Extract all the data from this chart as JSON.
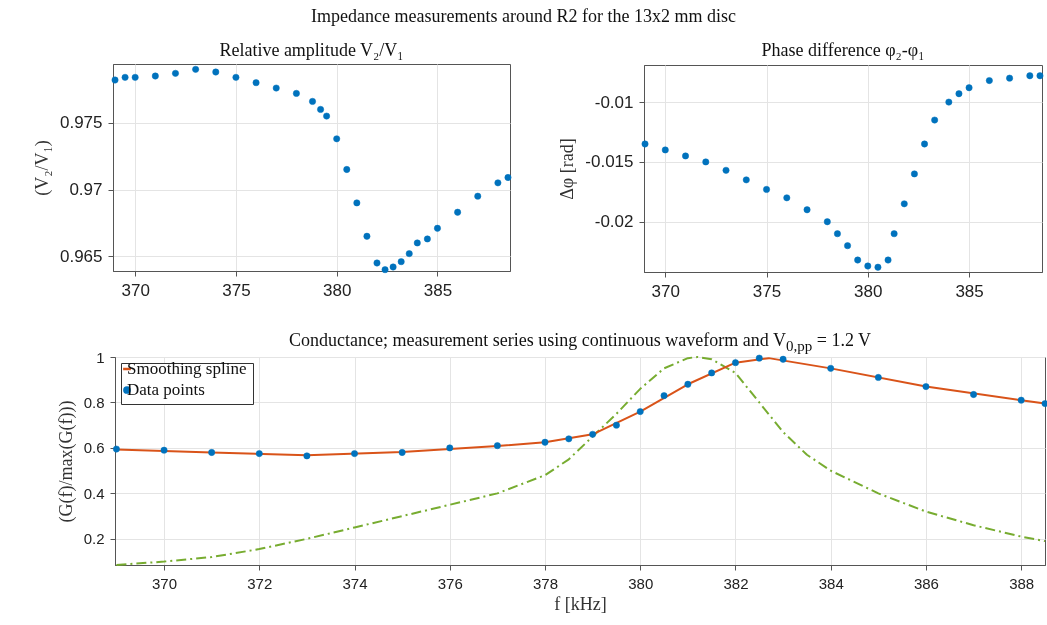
{
  "chart_data": [
    {
      "type": "scatter",
      "title": "Relative amplitude V₂/V₁",
      "ylabel": "(V₂/V₁)",
      "annotations": [
        "Impedance measurements around R2 for the 13x2 mm disc"
      ],
      "marker": "circle",
      "grid": true,
      "xlim": [
        368.9,
        388.6
      ],
      "xticks": [
        370,
        375,
        380,
        385
      ],
      "ylim": [
        0.9639,
        0.9794
      ],
      "yticks": [
        0.965,
        0.97,
        0.975
      ],
      "x": [
        369,
        369.5,
        370,
        371,
        372,
        373,
        374,
        375,
        376,
        377,
        378,
        378.8,
        379.2,
        379.5,
        380,
        380.5,
        381,
        381.5,
        382,
        382.4,
        382.8,
        383.2,
        383.6,
        384,
        384.5,
        385,
        386,
        387,
        388,
        388.5
      ],
      "series": [
        {
          "color": "#0072bd",
          "values": [
            0.9782,
            0.9784,
            0.9784,
            0.9785,
            0.9787,
            0.979,
            0.9788,
            0.9784,
            0.978,
            0.9776,
            0.9772,
            0.9766,
            0.976,
            0.9755,
            0.9738,
            0.9715,
            0.969,
            0.9665,
            0.9645,
            0.964,
            0.9642,
            0.9646,
            0.9652,
            0.966,
            0.9663,
            0.9671,
            0.9683,
            0.9695,
            0.9705,
            0.9709
          ]
        }
      ]
    },
    {
      "type": "scatter",
      "title": "Phase difference φ₂-φ₁",
      "ylabel": "Δφ [rad]",
      "marker": "circle",
      "grid": true,
      "xlim": [
        368.95,
        388.6
      ],
      "xticks": [
        370,
        375,
        380,
        385
      ],
      "ylim": [
        -0.0242,
        -0.0069
      ],
      "yticks": [
        -0.02,
        -0.015,
        -0.01
      ],
      "x": [
        369,
        370,
        371,
        372,
        373,
        374,
        375,
        376,
        377,
        378,
        378.5,
        379,
        379.5,
        380,
        380.5,
        381,
        381.3,
        381.8,
        382.3,
        382.8,
        383.3,
        384,
        384.5,
        385,
        386,
        387,
        388,
        388.5
      ],
      "series": [
        {
          "color": "#0072bd",
          "values": [
            -0.0135,
            -0.014,
            -0.0145,
            -0.015,
            -0.0157,
            -0.0165,
            -0.0173,
            -0.018,
            -0.019,
            -0.02,
            -0.021,
            -0.022,
            -0.0232,
            -0.0237,
            -0.0238,
            -0.0232,
            -0.021,
            -0.0185,
            -0.016,
            -0.0135,
            -0.0115,
            -0.01,
            -0.0093,
            -0.0088,
            -0.0082,
            -0.008,
            -0.0078,
            -0.0078
          ]
        }
      ]
    },
    {
      "type": "scatter",
      "title": "Conductance; measurement series using continuous waveform and V$_{0,pp}$ = 1.2 V",
      "xlabel": "f [kHz]",
      "ylabel": "(G(f)/max(G(f)))",
      "grid": true,
      "legend": "top left",
      "xlim": [
        368.97,
        388.5
      ],
      "xticks": [
        370,
        372,
        374,
        376,
        378,
        380,
        382,
        384,
        386,
        388
      ],
      "ylim": [
        0.085,
        1
      ],
      "yticks": [
        0.2,
        0.4,
        0.6,
        0.8,
        1
      ],
      "series": [
        {
          "type": "line",
          "line_style": "dashed",
          "color": "#77ac30",
          "x": [
            369,
            370,
            371,
            372,
            373,
            374,
            375,
            376,
            377,
            378,
            378.5,
            379,
            379.5,
            380,
            380.5,
            381,
            381.2,
            381.5,
            382,
            382.5,
            383,
            383.5,
            384,
            385,
            386,
            387,
            388,
            388.5
          ],
          "values": [
            0.085,
            0.1,
            0.12,
            0.155,
            0.2,
            0.25,
            0.3,
            0.35,
            0.4,
            0.48,
            0.55,
            0.65,
            0.75,
            0.86,
            0.95,
            0.995,
            1,
            0.99,
            0.93,
            0.8,
            0.67,
            0.57,
            0.5,
            0.4,
            0.32,
            0.26,
            0.21,
            0.19
          ]
        },
        {
          "type": "line",
          "name": "Smoothing spline",
          "color": "#d95319",
          "x": [
            369,
            371,
            373,
            375,
            377,
            378,
            379,
            380,
            381,
            382,
            382.7,
            384,
            386,
            388,
            388.5
          ],
          "values": [
            0.593,
            0.58,
            0.568,
            0.582,
            0.608,
            0.625,
            0.66,
            0.76,
            0.88,
            0.975,
            0.995,
            0.95,
            0.87,
            0.81,
            0.795
          ]
        },
        {
          "type": "scatter",
          "marker": "circle",
          "name": "Data points",
          "color": "#0072bd",
          "x": [
            369,
            370,
            371,
            372,
            373,
            374,
            375,
            376,
            377,
            378,
            378.5,
            379,
            379.5,
            380,
            380.5,
            381,
            381.5,
            382,
            382.5,
            383,
            384,
            385,
            386,
            387,
            388,
            388.5
          ],
          "values": [
            0.595,
            0.59,
            0.58,
            0.575,
            0.565,
            0.575,
            0.58,
            0.6,
            0.61,
            0.625,
            0.64,
            0.66,
            0.7,
            0.76,
            0.83,
            0.88,
            0.93,
            0.975,
            0.995,
            0.99,
            0.95,
            0.91,
            0.87,
            0.835,
            0.81,
            0.795
          ]
        }
      ]
    }
  ]
}
